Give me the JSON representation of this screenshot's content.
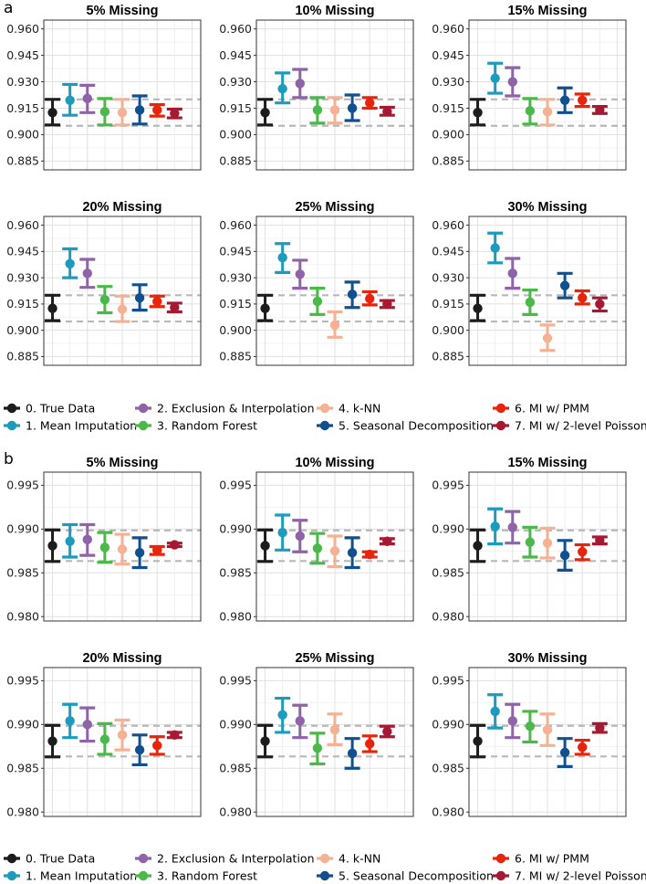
{
  "methods": [
    {
      "label": "0. True Data",
      "color": "#1c1c1c"
    },
    {
      "label": "1. Mean Imputation",
      "color": "#1d9bbd"
    },
    {
      "label": "2. Exclusion & Interpolation",
      "color": "#8e63a8"
    },
    {
      "label": "3. Random Forest",
      "color": "#4bb84a"
    },
    {
      "label": "4. k-NN",
      "color": "#f5b194"
    },
    {
      "label": "5. Seasonal Decomposition",
      "color": "#124f8e"
    },
    {
      "label": "6. MI w/ PMM",
      "color": "#e8240c"
    },
    {
      "label": "7. MI w/ 2-level Poisson",
      "color": "#a51a32"
    }
  ],
  "chart_data": [
    {
      "panel_label": "a",
      "type": "errorbar",
      "ylim": [
        0.88,
        0.965
      ],
      "yticks": [
        0.885,
        0.9,
        0.915,
        0.93,
        0.945,
        0.96
      ],
      "ytick_labels": [
        "0.885",
        "0.900",
        "0.915",
        "0.930",
        "0.945",
        "0.960"
      ],
      "reference_lines": [
        0.905,
        0.92
      ],
      "facets": [
        {
          "title": "5% Missing",
          "mean": [
            0.9125,
            0.9195,
            0.9205,
            0.913,
            0.9125,
            0.914,
            0.914,
            0.912
          ],
          "lower": [
            0.9055,
            0.911,
            0.9125,
            0.9055,
            0.9055,
            0.906,
            0.9105,
            0.9095
          ],
          "upper": [
            0.92,
            0.9285,
            0.928,
            0.9205,
            0.92,
            0.922,
            0.917,
            0.9145
          ]
        },
        {
          "title": "10% Missing",
          "mean": [
            0.9125,
            0.926,
            0.929,
            0.914,
            0.914,
            0.915,
            0.918,
            0.913
          ],
          "lower": [
            0.9055,
            0.918,
            0.921,
            0.9065,
            0.9065,
            0.908,
            0.915,
            0.911
          ],
          "upper": [
            0.92,
            0.935,
            0.937,
            0.921,
            0.921,
            0.9225,
            0.921,
            0.9155
          ]
        },
        {
          "title": "15% Missing",
          "mean": [
            0.9125,
            0.932,
            0.93,
            0.9135,
            0.913,
            0.9195,
            0.9195,
            0.914
          ],
          "lower": [
            0.9055,
            0.9235,
            0.922,
            0.906,
            0.9055,
            0.9125,
            0.916,
            0.912
          ],
          "upper": [
            0.92,
            0.9405,
            0.938,
            0.9205,
            0.92,
            0.9265,
            0.923,
            0.916
          ]
        },
        {
          "title": "20% Missing",
          "mean": [
            0.9125,
            0.938,
            0.9325,
            0.9175,
            0.912,
            0.9185,
            0.9165,
            0.913
          ],
          "lower": [
            0.9055,
            0.93,
            0.9245,
            0.91,
            0.905,
            0.9115,
            0.9135,
            0.9105
          ],
          "upper": [
            0.92,
            0.9465,
            0.9405,
            0.925,
            0.9195,
            0.926,
            0.9195,
            0.9155
          ]
        },
        {
          "title": "25% Missing",
          "mean": [
            0.9125,
            0.9415,
            0.932,
            0.9165,
            0.903,
            0.9205,
            0.918,
            0.915
          ],
          "lower": [
            0.9055,
            0.933,
            0.924,
            0.909,
            0.896,
            0.913,
            0.9145,
            0.913
          ],
          "upper": [
            0.92,
            0.9495,
            0.94,
            0.924,
            0.9105,
            0.9275,
            0.922,
            0.917
          ]
        },
        {
          "title": "30% Missing",
          "mean": [
            0.9125,
            0.947,
            0.9325,
            0.916,
            0.8955,
            0.9255,
            0.9185,
            0.915
          ],
          "lower": [
            0.9055,
            0.9385,
            0.924,
            0.909,
            0.8885,
            0.9185,
            0.915,
            0.911
          ],
          "upper": [
            0.92,
            0.9555,
            0.941,
            0.923,
            0.903,
            0.9325,
            0.9225,
            0.9185
          ]
        }
      ]
    },
    {
      "panel_label": "b",
      "type": "errorbar",
      "ylim": [
        0.9795,
        0.9965
      ],
      "yticks": [
        0.98,
        0.985,
        0.99,
        0.995
      ],
      "ytick_labels": [
        "0.980",
        "0.985",
        "0.990",
        "0.995"
      ],
      "reference_lines": [
        0.98635,
        0.98985
      ],
      "facets": [
        {
          "title": "5% Missing",
          "mean": [
            0.9881,
            0.9886,
            0.9888,
            0.9879,
            0.9877,
            0.9873,
            0.9876,
            0.9882
          ],
          "lower": [
            0.9863,
            0.9868,
            0.987,
            0.9862,
            0.986,
            0.9856,
            0.9871,
            0.988
          ],
          "upper": [
            0.9899,
            0.9905,
            0.9905,
            0.9896,
            0.9894,
            0.989,
            0.988,
            0.9884
          ]
        },
        {
          "title": "10% Missing",
          "mean": [
            0.9881,
            0.9896,
            0.9892,
            0.9878,
            0.9875,
            0.9873,
            0.9871,
            0.9886
          ],
          "lower": [
            0.9863,
            0.9876,
            0.9874,
            0.9861,
            0.9857,
            0.9856,
            0.9868,
            0.9883
          ],
          "upper": [
            0.9899,
            0.9916,
            0.991,
            0.9895,
            0.9892,
            0.989,
            0.9874,
            0.9889
          ]
        },
        {
          "title": "15% Missing",
          "mean": [
            0.9881,
            0.9903,
            0.9902,
            0.9885,
            0.9884,
            0.987,
            0.9874,
            0.9887
          ],
          "lower": [
            0.9863,
            0.9883,
            0.9884,
            0.9868,
            0.9867,
            0.9853,
            0.9865,
            0.9883
          ],
          "upper": [
            0.9899,
            0.9923,
            0.992,
            0.9902,
            0.9901,
            0.9887,
            0.9882,
            0.9891
          ]
        },
        {
          "title": "20% Missing",
          "mean": [
            0.9881,
            0.9904,
            0.99,
            0.9883,
            0.9888,
            0.9871,
            0.9876,
            0.9888
          ],
          "lower": [
            0.9863,
            0.9885,
            0.9881,
            0.9866,
            0.9871,
            0.9854,
            0.9866,
            0.9885
          ],
          "upper": [
            0.9899,
            0.9923,
            0.9919,
            0.9901,
            0.9905,
            0.9888,
            0.9886,
            0.9891
          ]
        },
        {
          "title": "25% Missing",
          "mean": [
            0.9881,
            0.9911,
            0.9904,
            0.9873,
            0.9894,
            0.9867,
            0.9878,
            0.9892
          ],
          "lower": [
            0.9863,
            0.9891,
            0.9885,
            0.9855,
            0.9877,
            0.985,
            0.9869,
            0.9886
          ],
          "upper": [
            0.9899,
            0.993,
            0.9922,
            0.989,
            0.9912,
            0.9884,
            0.9887,
            0.9898
          ]
        },
        {
          "title": "30% Missing",
          "mean": [
            0.9881,
            0.9915,
            0.9904,
            0.9898,
            0.9894,
            0.9868,
            0.9874,
            0.9896
          ],
          "lower": [
            0.9863,
            0.9896,
            0.9885,
            0.988,
            0.9876,
            0.9852,
            0.9866,
            0.9891
          ],
          "upper": [
            0.9899,
            0.9934,
            0.9923,
            0.9915,
            0.9912,
            0.9884,
            0.9882,
            0.9901
          ]
        }
      ]
    }
  ]
}
